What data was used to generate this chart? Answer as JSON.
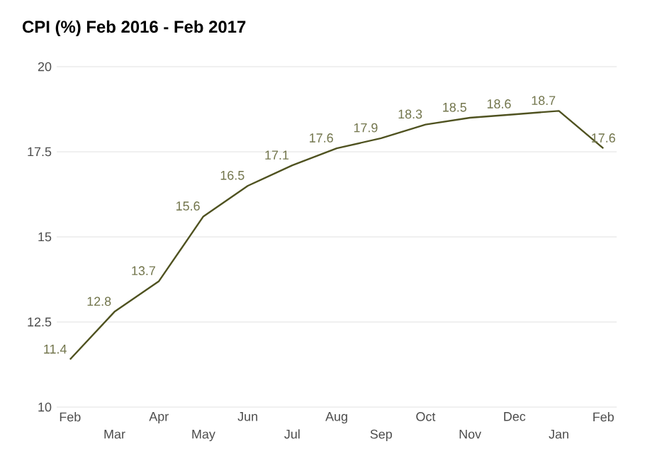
{
  "chart_data": {
    "type": "line",
    "title": "CPI (%) Feb 2016 - Feb 2017",
    "categories": [
      "Feb",
      "Mar",
      "Apr",
      "May",
      "Jun",
      "Jul",
      "Aug",
      "Sep",
      "Oct",
      "Nov",
      "Dec",
      "Jan",
      "Feb"
    ],
    "series": [
      {
        "color": "#4f5220",
        "values": [
          11.4,
          12.8,
          13.7,
          15.6,
          16.5,
          17.1,
          17.6,
          17.9,
          18.3,
          18.5,
          18.6,
          18.7,
          17.6
        ]
      }
    ],
    "ylim": [
      10,
      20
    ],
    "yticks": [
      10,
      12.5,
      15,
      17.5,
      20
    ],
    "grid": "y",
    "data_labels": true,
    "marker": "none",
    "line_style": "solid"
  }
}
